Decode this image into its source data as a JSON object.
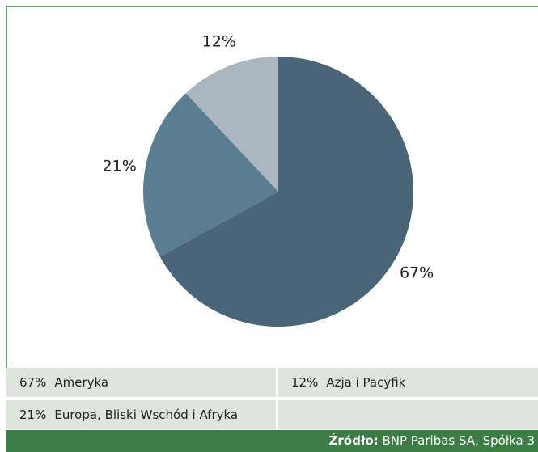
{
  "chart_data": {
    "type": "pie",
    "categories": [
      "Ameryka",
      "Europa, Bliski Wschód i Afryka",
      "Azja i Pacyfik"
    ],
    "values": [
      67,
      21,
      12
    ],
    "value_labels": [
      "67%",
      "21%",
      "12%"
    ],
    "colors": [
      "#4a6577",
      "#5b7d92",
      "#aab7c1"
    ]
  },
  "footer": {
    "source_label": "Źródło:",
    "source": "BNP Paribas SA, Spółka 3"
  }
}
